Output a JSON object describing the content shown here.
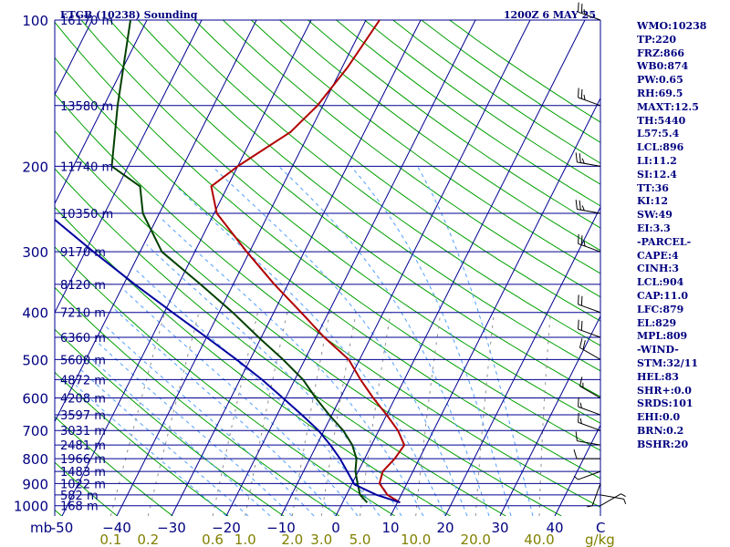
{
  "header": {
    "station": "ETGB (10238) Sounding",
    "time": "1200Z  6 MAY 25"
  },
  "axes": {
    "pressure_unit": "mb",
    "pressure_ticks": [
      100,
      200,
      300,
      400,
      500,
      600,
      700,
      800,
      900,
      1000
    ],
    "temperature_ticks": [
      -50,
      -40,
      -30,
      -20,
      -10,
      0,
      10,
      20,
      30,
      40
    ],
    "temperature_tick_labels": [
      "-50",
      "−40",
      "−30",
      "−20",
      "−10",
      "0",
      "10",
      "20",
      "30",
      "40"
    ],
    "temperature_unit": "C",
    "mixing_ratio_labels": [
      "0.1",
      "0.2",
      "0.6",
      "1.0",
      "2.0",
      "3.0",
      "5.0",
      "10.0",
      "20.0",
      "40.0"
    ],
    "mixing_ratio_unit": "g/kg"
  },
  "height_labels": [
    {
      "p": 100,
      "label": "16170 m"
    },
    {
      "p": 150,
      "label": "13580 m"
    },
    {
      "p": 200,
      "label": "11740 m"
    },
    {
      "p": 250,
      "label": "10350 m"
    },
    {
      "p": 300,
      "label": "9170 m"
    },
    {
      "p": 350,
      "label": "8120 m"
    },
    {
      "p": 400,
      "label": "7210 m"
    },
    {
      "p": 450,
      "label": "6360 m"
    },
    {
      "p": 500,
      "label": "5600 m"
    },
    {
      "p": 550,
      "label": "4872 m"
    },
    {
      "p": 600,
      "label": "4208 m"
    },
    {
      "p": 650,
      "label": "3597 m"
    },
    {
      "p": 700,
      "label": "3031 m"
    },
    {
      "p": 750,
      "label": "2481 m"
    },
    {
      "p": 800,
      "label": "1966 m"
    },
    {
      "p": 850,
      "label": "1483 m"
    },
    {
      "p": 900,
      "label": "1022 m"
    },
    {
      "p": 950,
      "label": "582 m"
    },
    {
      "p": 1000,
      "label": "168 m"
    }
  ],
  "indices": [
    "WMO:10238",
    "TP:220",
    "FRZ:866",
    "WB0:874",
    "PW:0.65",
    "RH:69.5",
    "MAXT:12.5",
    "TH:5440",
    "L57:5.4",
    "LCL:896",
    "LI:11.2",
    "SI:12.4",
    "TT:36",
    "KI:12",
    "SW:49",
    "EI:3.3",
    "-PARCEL-",
    "CAPE:4",
    "CINH:3",
    "LCL:904",
    "CAP:11.0",
    "LFC:879",
    "EL:829",
    "MPL:809",
    "-WIND-",
    "STM:32/11",
    "HEL:83",
    "SHR+:0.0",
    "SRDS:101",
    "EHI:0.0",
    "BRN:0.2",
    "BSHR:20"
  ],
  "colors": {
    "temperature": "#b00000",
    "dewpoint": "#004000",
    "parcel": "#0000a0",
    "isobar": "#000090",
    "isotherm": "#000090",
    "dry_adiabat": "#00a000",
    "moist_adiabat": "#50a0ff",
    "mixing_ratio": "#909090",
    "labels": "#000080",
    "mixing_labels": "#808000"
  },
  "chart_data": {
    "type": "line",
    "title": "ETGB (10238) Sounding",
    "subtitle": "1200Z  6 MAY 25",
    "xlabel": "C",
    "ylabel": "mb",
    "log_scale_y": true,
    "ylim": [
      1050,
      100
    ],
    "xlim": [
      -50,
      50
    ],
    "series": [
      {
        "key": "temperature",
        "points": [
          {
            "p": 985,
            "t": 10.5
          },
          {
            "p": 950,
            "t": 7.5
          },
          {
            "p": 900,
            "t": 5.0
          },
          {
            "p": 850,
            "t": 4.5
          },
          {
            "p": 800,
            "t": 5.5
          },
          {
            "p": 750,
            "t": 6.0
          },
          {
            "p": 700,
            "t": 3.5
          },
          {
            "p": 650,
            "t": 0.0
          },
          {
            "p": 600,
            "t": -4.0
          },
          {
            "p": 550,
            "t": -8.0
          },
          {
            "p": 500,
            "t": -12.0
          },
          {
            "p": 450,
            "t": -18.5
          },
          {
            "p": 400,
            "t": -25.0
          },
          {
            "p": 350,
            "t": -32.5
          },
          {
            "p": 300,
            "t": -40.5
          },
          {
            "p": 250,
            "t": -49.5
          },
          {
            "p": 220,
            "t": -53.0
          },
          {
            "p": 200,
            "t": -50.0
          },
          {
            "p": 170,
            "t": -43.5
          },
          {
            "p": 150,
            "t": -41.0
          },
          {
            "p": 125,
            "t": -39.0
          },
          {
            "p": 100,
            "t": -37.5
          }
        ]
      },
      {
        "key": "dewpoint",
        "points": [
          {
            "p": 985,
            "t": 4.5
          },
          {
            "p": 950,
            "t": 2.5
          },
          {
            "p": 900,
            "t": 1.0
          },
          {
            "p": 850,
            "t": -0.5
          },
          {
            "p": 800,
            "t": -1.5
          },
          {
            "p": 750,
            "t": -3.5
          },
          {
            "p": 700,
            "t": -6.5
          },
          {
            "p": 650,
            "t": -10.5
          },
          {
            "p": 600,
            "t": -14.5
          },
          {
            "p": 550,
            "t": -18.5
          },
          {
            "p": 500,
            "t": -24.0
          },
          {
            "p": 450,
            "t": -30.5
          },
          {
            "p": 400,
            "t": -37.5
          },
          {
            "p": 350,
            "t": -46.0
          },
          {
            "p": 300,
            "t": -56.0
          },
          {
            "p": 250,
            "t": -63.0
          },
          {
            "p": 220,
            "t": -66.0
          },
          {
            "p": 200,
            "t": -73.0
          },
          {
            "p": 150,
            "t": -77.5
          },
          {
            "p": 100,
            "t": -83.0
          }
        ]
      },
      {
        "key": "parcel",
        "points": [
          {
            "p": 985,
            "t": 10.5
          },
          {
            "p": 950,
            "t": 5.5
          },
          {
            "p": 904,
            "t": 0.5
          },
          {
            "p": 850,
            "t": -2.0
          },
          {
            "p": 800,
            "t": -4.5
          },
          {
            "p": 750,
            "t": -7.5
          },
          {
            "p": 700,
            "t": -11.0
          },
          {
            "p": 650,
            "t": -15.5
          },
          {
            "p": 600,
            "t": -20.5
          },
          {
            "p": 550,
            "t": -26.0
          },
          {
            "p": 500,
            "t": -32.5
          },
          {
            "p": 450,
            "t": -40.0
          },
          {
            "p": 400,
            "t": -48.5
          },
          {
            "p": 350,
            "t": -58.0
          },
          {
            "p": 300,
            "t": -68.5
          },
          {
            "p": 250,
            "t": -80.5
          },
          {
            "p": 200,
            "t": -94.5
          },
          {
            "p": 150,
            "t": -111.0
          }
        ]
      }
    ],
    "mixing_ratio_gkg": [
      0.1,
      0.2,
      0.6,
      1.0,
      2.0,
      3.0,
      5.0,
      10.0,
      20.0,
      40.0
    ],
    "wind_barbs": [
      {
        "p": 1000,
        "dir": 60,
        "kt": 5
      },
      {
        "p": 950,
        "dir": 100,
        "kt": 5
      },
      {
        "p": 900,
        "dir": 200,
        "kt": 5
      },
      {
        "p": 850,
        "dir": 250,
        "kt": 5
      },
      {
        "p": 800,
        "dir": 270,
        "kt": 10
      },
      {
        "p": 750,
        "dir": 280,
        "kt": 10
      },
      {
        "p": 700,
        "dir": 290,
        "kt": 15
      },
      {
        "p": 650,
        "dir": 290,
        "kt": 15
      },
      {
        "p": 600,
        "dir": 300,
        "kt": 15
      },
      {
        "p": 500,
        "dir": 300,
        "kt": 20
      },
      {
        "p": 450,
        "dir": 290,
        "kt": 20
      },
      {
        "p": 400,
        "dir": 290,
        "kt": 20
      },
      {
        "p": 300,
        "dir": 290,
        "kt": 25
      },
      {
        "p": 250,
        "dir": 280,
        "kt": 25
      },
      {
        "p": 200,
        "dir": 280,
        "kt": 25
      },
      {
        "p": 150,
        "dir": 290,
        "kt": 25
      },
      {
        "p": 100,
        "dir": 290,
        "kt": 25
      }
    ]
  }
}
